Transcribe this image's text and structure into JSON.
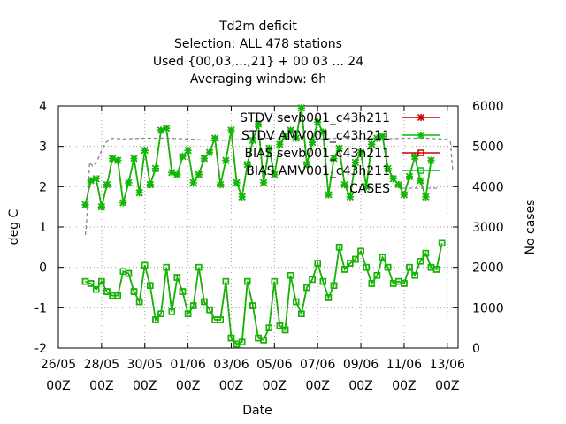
{
  "chart_data": {
    "type": "line",
    "title_lines": [
      "Td2m deficit",
      "Selection: ALL    478 stations",
      "Used {00,03,...,21} + 00 03 ... 24",
      "Averaging window:  6h"
    ],
    "xlabel": "Date",
    "ylabel": "deg C",
    "y2label": "No cases",
    "xlim": [
      0,
      18.5
    ],
    "ylim": [
      -2,
      4
    ],
    "y2lim": [
      0,
      6000
    ],
    "x_ticks": [
      {
        "pos": 0,
        "date": "26/05",
        "hour": "00Z"
      },
      {
        "pos": 2,
        "date": "28/05",
        "hour": "00Z"
      },
      {
        "pos": 4,
        "date": "30/05",
        "hour": "00Z"
      },
      {
        "pos": 6,
        "date": "01/06",
        "hour": "00Z"
      },
      {
        "pos": 8,
        "date": "03/06",
        "hour": "00Z"
      },
      {
        "pos": 10,
        "date": "05/06",
        "hour": "00Z"
      },
      {
        "pos": 12,
        "date": "07/06",
        "hour": "00Z"
      },
      {
        "pos": 14,
        "date": "09/06",
        "hour": "00Z"
      },
      {
        "pos": 16,
        "date": "11/06",
        "hour": "00Z"
      },
      {
        "pos": 18,
        "date": "13/06",
        "hour": "00Z"
      }
    ],
    "y_ticks": [
      "-2",
      "-1",
      "0",
      "1",
      "2",
      "3",
      "4"
    ],
    "y2_ticks": [
      "0",
      "1000",
      "2000",
      "3000",
      "4000",
      "5000",
      "6000"
    ],
    "legend_position": "top-right",
    "grid": true,
    "x_start": 1.25,
    "x_step": 0.25,
    "series": [
      {
        "name": "STDV sevb001_c43h211",
        "color": "#d00000",
        "marker": "x",
        "values": [
          1.55,
          2.15,
          2.2,
          1.5,
          2.05,
          2.7,
          2.65,
          1.6,
          2.1,
          2.7,
          1.85,
          2.9,
          2.05,
          2.45,
          3.4,
          3.45,
          2.35,
          2.3,
          2.75,
          2.9,
          2.1,
          2.3,
          2.7,
          2.85,
          3.2,
          2.05,
          2.65,
          3.4,
          2.1,
          1.75,
          2.55,
          3.15,
          3.55,
          2.1,
          2.95,
          2.3,
          3.05,
          3.25,
          3.4,
          3.2,
          3.95,
          2.55,
          3.1,
          3.6,
          3.35,
          1.8,
          2.7,
          2.95,
          2.05,
          1.75,
          2.6,
          2.85,
          2.0,
          3.05,
          3.2,
          3.25,
          2.45,
          2.2,
          2.05,
          1.8,
          2.25,
          2.75,
          2.15,
          1.75,
          2.65
        ]
      },
      {
        "name": "STDV AMV001_c43h211",
        "color": "#00c000",
        "marker": "x",
        "values": [
          1.55,
          2.15,
          2.2,
          1.5,
          2.05,
          2.7,
          2.65,
          1.6,
          2.1,
          2.7,
          1.85,
          2.9,
          2.05,
          2.45,
          3.4,
          3.45,
          2.35,
          2.3,
          2.75,
          2.9,
          2.1,
          2.3,
          2.7,
          2.85,
          3.2,
          2.05,
          2.65,
          3.4,
          2.1,
          1.75,
          2.55,
          3.15,
          3.55,
          2.1,
          2.95,
          2.3,
          3.05,
          3.25,
          3.4,
          3.2,
          3.95,
          2.55,
          3.1,
          3.6,
          3.35,
          1.8,
          2.7,
          2.95,
          2.05,
          1.75,
          2.6,
          2.85,
          2.0,
          3.05,
          3.2,
          3.25,
          2.45,
          2.2,
          2.05,
          1.8,
          2.25,
          2.75,
          2.15,
          1.75,
          2.65
        ]
      },
      {
        "name": "BIAS sevb001_c43h211",
        "color": "#d00000",
        "marker": "square",
        "values": [
          -0.35,
          -0.4,
          -0.55,
          -0.35,
          -0.6,
          -0.7,
          -0.7,
          -0.1,
          -0.15,
          -0.6,
          -0.85,
          0.05,
          -0.45,
          -1.3,
          -1.15,
          0.0,
          -1.1,
          -0.25,
          -0.6,
          -1.15,
          -0.95,
          0.0,
          -0.85,
          -1.05,
          -1.3,
          -1.3,
          -0.35,
          -1.75,
          -1.9,
          -1.85,
          -0.35,
          -0.95,
          -1.75,
          -1.8,
          -1.5,
          -0.35,
          -1.45,
          -1.55,
          -0.2,
          -0.85,
          -1.15,
          -0.5,
          -0.3,
          0.1,
          -0.35,
          -0.75,
          -0.45,
          0.5,
          -0.05,
          0.1,
          0.2,
          0.4,
          0.0,
          -0.4,
          -0.2,
          0.25,
          0.0,
          -0.4,
          -0.35,
          -0.4,
          0.0,
          -0.2,
          0.15,
          0.35,
          0.0,
          -0.05,
          0.6
        ]
      },
      {
        "name": "BIAS AMV001_c43h211",
        "color": "#00c000",
        "marker": "square",
        "values": [
          -0.35,
          -0.4,
          -0.55,
          -0.35,
          -0.6,
          -0.7,
          -0.7,
          -0.1,
          -0.15,
          -0.6,
          -0.85,
          0.05,
          -0.45,
          -1.3,
          -1.15,
          0.0,
          -1.1,
          -0.25,
          -0.6,
          -1.15,
          -0.95,
          0.0,
          -0.85,
          -1.05,
          -1.3,
          -1.3,
          -0.35,
          -1.75,
          -1.9,
          -1.85,
          -0.35,
          -0.95,
          -1.75,
          -1.8,
          -1.5,
          -0.35,
          -1.45,
          -1.55,
          -0.2,
          -0.85,
          -1.15,
          -0.5,
          -0.3,
          0.1,
          -0.35,
          -0.75,
          -0.45,
          0.5,
          -0.05,
          0.1,
          0.2,
          0.4,
          0.0,
          -0.4,
          -0.2,
          0.25,
          0.0,
          -0.4,
          -0.35,
          -0.4,
          0.0,
          -0.2,
          0.15,
          0.35,
          0.0,
          -0.05,
          0.6
        ]
      },
      {
        "name": "CASES",
        "color": "#888888",
        "marker": "none",
        "dashed": true,
        "axis": "y2",
        "points": [
          [
            1.25,
            2800
          ],
          [
            1.3,
            3100
          ],
          [
            1.45,
            4600
          ],
          [
            1.6,
            4500
          ],
          [
            1.8,
            4650
          ],
          [
            2.0,
            4900
          ],
          [
            2.2,
            5100
          ],
          [
            2.5,
            5200
          ],
          [
            3.0,
            5180
          ],
          [
            4.0,
            5200
          ],
          [
            5.0,
            5200
          ],
          [
            6.0,
            5180
          ],
          [
            7.0,
            5150
          ],
          [
            8.0,
            5150
          ],
          [
            9.0,
            5200
          ],
          [
            10.0,
            5200
          ],
          [
            11.0,
            5150
          ],
          [
            12.0,
            5180
          ],
          [
            13.0,
            5200
          ],
          [
            14.0,
            5200
          ],
          [
            15.0,
            5180
          ],
          [
            16.0,
            5200
          ],
          [
            17.0,
            5200
          ],
          [
            18.0,
            5170
          ],
          [
            18.15,
            5100
          ],
          [
            18.25,
            4400
          ]
        ]
      }
    ]
  }
}
